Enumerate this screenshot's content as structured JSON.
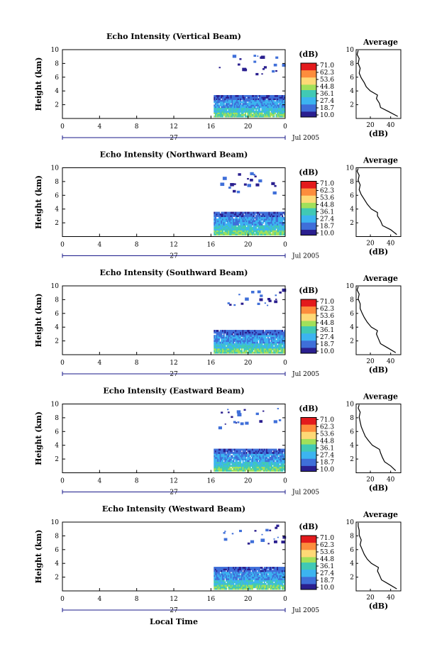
{
  "figure": {
    "xlabel": "Local Time",
    "date_label": "Jul 2005",
    "day_label": "27",
    "colorbar": {
      "unit": "(dB)",
      "ticks": [
        "71.0",
        "62.3",
        "53.6",
        "44.8",
        "36.1",
        "27.4",
        "18.7",
        "10.0"
      ],
      "colors": [
        "#e31a1c",
        "#fd8d3c",
        "#fed976",
        "#a1e05a",
        "#41c9b4",
        "#3cb4f0",
        "#3f6fd9",
        "#2a1f8f"
      ]
    },
    "average_title": "Average",
    "average_xlabel": "(dB)"
  },
  "chart_data": [
    {
      "type": "heatmap",
      "title": "Echo Intensity (Vertical Beam)",
      "ylabel": "Height (km)",
      "x_ticks": [
        "0",
        "4",
        "8",
        "12",
        "16",
        "20",
        "0"
      ],
      "xlim": [
        0,
        24
      ],
      "ylim": [
        0,
        10
      ],
      "y_ticks": [
        "2",
        "4",
        "6",
        "8",
        "10"
      ],
      "data_window_hours": [
        16.3,
        24
      ],
      "low_layer_top_km": 3.4,
      "average": {
        "x_ticks": [
          "20",
          "40"
        ],
        "xlim": [
          6,
          50
        ],
        "profile": [
          [
            47,
            0.3
          ],
          [
            38,
            1.0
          ],
          [
            30,
            1.6
          ],
          [
            29,
            2.2
          ],
          [
            26,
            2.9
          ],
          [
            27,
            3.4
          ],
          [
            20,
            4.0
          ],
          [
            16,
            4.6
          ],
          [
            14,
            5.2
          ],
          [
            11,
            5.9
          ],
          [
            9,
            6.6
          ],
          [
            10,
            7.3
          ],
          [
            8,
            8.0
          ],
          [
            9,
            8.7
          ],
          [
            7,
            9.3
          ],
          [
            8,
            9.9
          ]
        ]
      }
    },
    {
      "type": "heatmap",
      "title": "Echo Intensity (Northward Beam)",
      "ylabel": "Height (km)",
      "x_ticks": [
        "0",
        "4",
        "8",
        "12",
        "16",
        "20",
        "0"
      ],
      "xlim": [
        0,
        24
      ],
      "ylim": [
        0,
        10
      ],
      "y_ticks": [
        "2",
        "4",
        "6",
        "8",
        "10"
      ],
      "data_window_hours": [
        16.3,
        24
      ],
      "low_layer_top_km": 3.6,
      "average": {
        "x_ticks": [
          "20",
          "40"
        ],
        "xlim": [
          6,
          50
        ],
        "profile": [
          [
            46,
            0.3
          ],
          [
            40,
            1.0
          ],
          [
            32,
            1.6
          ],
          [
            30,
            2.3
          ],
          [
            27,
            3.0
          ],
          [
            27,
            3.5
          ],
          [
            21,
            4.0
          ],
          [
            17,
            4.7
          ],
          [
            14,
            5.4
          ],
          [
            11,
            6.1
          ],
          [
            9,
            6.8
          ],
          [
            10,
            7.5
          ],
          [
            8,
            8.2
          ],
          [
            9,
            8.9
          ],
          [
            7,
            9.5
          ],
          [
            8,
            9.9
          ]
        ]
      }
    },
    {
      "type": "heatmap",
      "title": "Echo Intensity (Southward Beam)",
      "ylabel": "Height (km)",
      "x_ticks": [
        "0",
        "4",
        "8",
        "12",
        "16",
        "20",
        "0"
      ],
      "xlim": [
        0,
        24
      ],
      "ylim": [
        0,
        10
      ],
      "y_ticks": [
        "2",
        "4",
        "6",
        "8",
        "10"
      ],
      "data_window_hours": [
        16.3,
        24
      ],
      "low_layer_top_km": 3.6,
      "average": {
        "x_ticks": [
          "20",
          "40"
        ],
        "xlim": [
          6,
          50
        ],
        "profile": [
          [
            45,
            0.3
          ],
          [
            37,
            1.0
          ],
          [
            30,
            1.6
          ],
          [
            28,
            2.3
          ],
          [
            26,
            3.0
          ],
          [
            27,
            3.5
          ],
          [
            21,
            4.0
          ],
          [
            17,
            4.7
          ],
          [
            14,
            5.4
          ],
          [
            12,
            6.0
          ],
          [
            10,
            6.7
          ],
          [
            10,
            7.4
          ],
          [
            8,
            8.1
          ],
          [
            9,
            8.8
          ],
          [
            7,
            9.4
          ],
          [
            8,
            9.9
          ]
        ]
      }
    },
    {
      "type": "heatmap",
      "title": "Echo Intensity (Eastward Beam)",
      "ylabel": "Height (km)",
      "x_ticks": [
        "0",
        "4",
        "8",
        "12",
        "16",
        "20",
        "0"
      ],
      "xlim": [
        0,
        24
      ],
      "ylim": [
        0,
        10
      ],
      "y_ticks": [
        "2",
        "4",
        "6",
        "8",
        "10"
      ],
      "data_window_hours": [
        16.3,
        24
      ],
      "low_layer_top_km": 3.5,
      "average": {
        "x_ticks": [
          "20",
          "40"
        ],
        "xlim": [
          6,
          50
        ],
        "profile": [
          [
            45,
            0.3
          ],
          [
            40,
            1.0
          ],
          [
            34,
            1.6
          ],
          [
            32,
            2.2
          ],
          [
            30,
            2.9
          ],
          [
            29,
            3.4
          ],
          [
            22,
            4.0
          ],
          [
            18,
            4.7
          ],
          [
            15,
            5.3
          ],
          [
            13,
            6.0
          ],
          [
            11,
            6.7
          ],
          [
            10,
            7.4
          ],
          [
            9,
            8.1
          ],
          [
            10,
            8.8
          ],
          [
            8,
            9.4
          ],
          [
            9,
            9.9
          ]
        ]
      }
    },
    {
      "type": "heatmap",
      "title": "Echo Intensity (Westward Beam)",
      "ylabel": "Height (km)",
      "x_ticks": [
        "0",
        "4",
        "8",
        "12",
        "16",
        "20",
        "0"
      ],
      "xlim": [
        0,
        24
      ],
      "ylim": [
        0,
        10
      ],
      "y_ticks": [
        "2",
        "4",
        "6",
        "8",
        "10"
      ],
      "data_window_hours": [
        16.3,
        24
      ],
      "low_layer_top_km": 3.5,
      "average": {
        "x_ticks": [
          "20",
          "40"
        ],
        "xlim": [
          6,
          50
        ],
        "profile": [
          [
            46,
            0.3
          ],
          [
            38,
            1.0
          ],
          [
            31,
            1.6
          ],
          [
            29,
            2.3
          ],
          [
            27,
            2.9
          ],
          [
            28,
            3.4
          ],
          [
            21,
            4.0
          ],
          [
            17,
            4.6
          ],
          [
            14,
            5.3
          ],
          [
            12,
            6.0
          ],
          [
            10,
            6.7
          ],
          [
            11,
            7.4
          ],
          [
            9,
            8.1
          ],
          [
            9,
            8.8
          ],
          [
            8,
            9.4
          ],
          [
            8,
            9.9
          ]
        ]
      }
    }
  ]
}
